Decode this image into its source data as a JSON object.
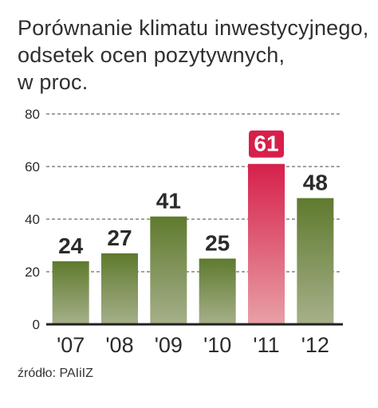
{
  "colors": {
    "bar_top": "#5f7a2e",
    "bar_bottom": "#a6b08a",
    "highlight_top": "#d6204b",
    "highlight_bottom": "#e8a0a6",
    "highlight_label_bg": "#d6204b",
    "text": "#2b2b2b",
    "grid": "#444444"
  },
  "chart_data": {
    "type": "bar",
    "title": [
      "Porównanie klimatu inwestycyjnego,",
      "odsetek ocen pozytywnych,",
      "w proc."
    ],
    "categories": [
      "'07",
      "'08",
      "'09",
      "'10",
      "'11",
      "'12"
    ],
    "values": [
      24,
      27,
      41,
      25,
      61,
      48
    ],
    "data_labels": [
      "24",
      "27",
      "41",
      "25",
      "61",
      "48"
    ],
    "highlight_index": 4,
    "ylim": [
      0,
      80
    ],
    "yticks": [
      0,
      20,
      40,
      60,
      80
    ],
    "ytick_labels": [
      "0",
      "20",
      "40",
      "60",
      "80"
    ],
    "grid": "dashed horizontal",
    "xlabel": "",
    "ylabel": ""
  },
  "source": "źródło: PAIiIZ"
}
